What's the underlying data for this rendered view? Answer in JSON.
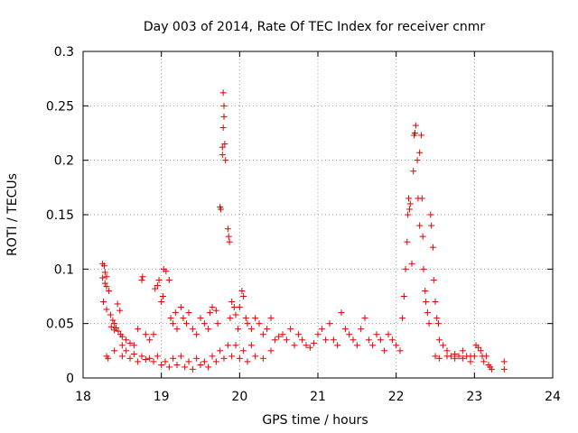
{
  "chart_data": {
    "type": "scatter",
    "title": "Day 003 of 2014, Rate Of TEC Index for receiver cnmr",
    "xlabel": "GPS time / hours",
    "ylabel": "ROTI / TECUs",
    "xlim": [
      18,
      24
    ],
    "ylim": [
      0,
      0.3
    ],
    "x_ticks": [
      18,
      19,
      20,
      21,
      22,
      23,
      24
    ],
    "y_ticks": [
      0,
      0.05,
      0.1,
      0.15,
      0.2,
      0.25,
      0.3
    ],
    "x_tick_labels": [
      "18",
      "19",
      "20",
      "21",
      "22",
      "23",
      "24"
    ],
    "y_tick_labels": [
      "0",
      "0.05",
      "0.1",
      "0.15",
      "0.2",
      "0.25",
      "0.3"
    ],
    "grid": true,
    "marker": "plus",
    "color": "#e00000",
    "series": [
      {
        "name": "ROTI",
        "points": [
          [
            18.25,
            0.105
          ],
          [
            18.27,
            0.103
          ],
          [
            18.28,
            0.097
          ],
          [
            18.3,
            0.093
          ],
          [
            18.25,
            0.092
          ],
          [
            18.28,
            0.087
          ],
          [
            18.3,
            0.084
          ],
          [
            18.33,
            0.08
          ],
          [
            18.26,
            0.07
          ],
          [
            18.3,
            0.063
          ],
          [
            18.35,
            0.058
          ],
          [
            18.38,
            0.053
          ],
          [
            18.4,
            0.05
          ],
          [
            18.42,
            0.046
          ],
          [
            18.45,
            0.043
          ],
          [
            18.48,
            0.04
          ],
          [
            18.5,
            0.038
          ],
          [
            18.55,
            0.035
          ],
          [
            18.6,
            0.032
          ],
          [
            18.65,
            0.03
          ],
          [
            18.36,
            0.047
          ],
          [
            18.4,
            0.044
          ],
          [
            18.44,
            0.068
          ],
          [
            18.47,
            0.062
          ],
          [
            18.5,
            0.03
          ],
          [
            18.7,
            0.045
          ],
          [
            18.75,
            0.09
          ],
          [
            18.76,
            0.093
          ],
          [
            18.8,
            0.04
          ],
          [
            18.85,
            0.035
          ],
          [
            18.9,
            0.04
          ],
          [
            18.92,
            0.082
          ],
          [
            18.95,
            0.085
          ],
          [
            18.97,
            0.09
          ],
          [
            19.0,
            0.07
          ],
          [
            19.02,
            0.075
          ],
          [
            19.03,
            0.1
          ],
          [
            19.06,
            0.098
          ],
          [
            19.1,
            0.09
          ],
          [
            19.12,
            0.055
          ],
          [
            19.15,
            0.05
          ],
          [
            19.18,
            0.06
          ],
          [
            19.2,
            0.045
          ],
          [
            19.25,
            0.065
          ],
          [
            19.28,
            0.055
          ],
          [
            19.32,
            0.05
          ],
          [
            19.35,
            0.06
          ],
          [
            19.4,
            0.045
          ],
          [
            19.45,
            0.04
          ],
          [
            19.5,
            0.055
          ],
          [
            19.55,
            0.05
          ],
          [
            19.6,
            0.045
          ],
          [
            19.62,
            0.06
          ],
          [
            19.65,
            0.065
          ],
          [
            19.7,
            0.062
          ],
          [
            19.72,
            0.05
          ],
          [
            19.75,
            0.157
          ],
          [
            19.76,
            0.155
          ],
          [
            19.78,
            0.205
          ],
          [
            19.78,
            0.212
          ],
          [
            19.79,
            0.23
          ],
          [
            19.8,
            0.24
          ],
          [
            19.81,
            0.215
          ],
          [
            19.82,
            0.2
          ],
          [
            19.79,
            0.262
          ],
          [
            19.8,
            0.25
          ],
          [
            19.85,
            0.137
          ],
          [
            19.86,
            0.13
          ],
          [
            19.87,
            0.125
          ],
          [
            19.88,
            0.055
          ],
          [
            19.9,
            0.07
          ],
          [
            19.93,
            0.065
          ],
          [
            19.95,
            0.058
          ],
          [
            19.98,
            0.045
          ],
          [
            20.0,
            0.065
          ],
          [
            20.03,
            0.08
          ],
          [
            20.05,
            0.075
          ],
          [
            20.08,
            0.055
          ],
          [
            20.1,
            0.05
          ],
          [
            20.15,
            0.045
          ],
          [
            20.2,
            0.055
          ],
          [
            20.25,
            0.05
          ],
          [
            20.3,
            0.04
          ],
          [
            20.35,
            0.045
          ],
          [
            20.4,
            0.055
          ],
          [
            20.45,
            0.035
          ],
          [
            20.5,
            0.038
          ],
          [
            20.55,
            0.04
          ],
          [
            20.6,
            0.035
          ],
          [
            20.65,
            0.045
          ],
          [
            20.7,
            0.03
          ],
          [
            20.75,
            0.04
          ],
          [
            20.8,
            0.035
          ],
          [
            20.85,
            0.03
          ],
          [
            20.9,
            0.028
          ],
          [
            20.95,
            0.032
          ],
          [
            21.0,
            0.04
          ],
          [
            21.05,
            0.045
          ],
          [
            21.1,
            0.035
          ],
          [
            21.15,
            0.05
          ],
          [
            21.2,
            0.035
          ],
          [
            21.25,
            0.03
          ],
          [
            21.3,
            0.06
          ],
          [
            21.35,
            0.045
          ],
          [
            21.4,
            0.04
          ],
          [
            21.45,
            0.035
          ],
          [
            21.5,
            0.03
          ],
          [
            21.55,
            0.045
          ],
          [
            21.6,
            0.055
          ],
          [
            21.65,
            0.035
          ],
          [
            21.7,
            0.03
          ],
          [
            21.75,
            0.04
          ],
          [
            21.8,
            0.035
          ],
          [
            21.85,
            0.025
          ],
          [
            21.9,
            0.04
          ],
          [
            21.95,
            0.035
          ],
          [
            22.0,
            0.03
          ],
          [
            22.05,
            0.025
          ],
          [
            22.08,
            0.055
          ],
          [
            22.1,
            0.075
          ],
          [
            22.12,
            0.1
          ],
          [
            22.14,
            0.125
          ],
          [
            22.15,
            0.15
          ],
          [
            22.16,
            0.165
          ],
          [
            22.17,
            0.155
          ],
          [
            22.18,
            0.16
          ],
          [
            22.2,
            0.105
          ],
          [
            22.22,
            0.19
          ],
          [
            22.23,
            0.223
          ],
          [
            22.24,
            0.225
          ],
          [
            22.25,
            0.232
          ],
          [
            22.27,
            0.2
          ],
          [
            22.28,
            0.165
          ],
          [
            22.3,
            0.14
          ],
          [
            22.3,
            0.207
          ],
          [
            22.32,
            0.223
          ],
          [
            22.33,
            0.165
          ],
          [
            22.34,
            0.13
          ],
          [
            22.35,
            0.1
          ],
          [
            22.37,
            0.08
          ],
          [
            22.38,
            0.07
          ],
          [
            22.4,
            0.06
          ],
          [
            22.42,
            0.05
          ],
          [
            22.44,
            0.15
          ],
          [
            22.45,
            0.14
          ],
          [
            22.47,
            0.12
          ],
          [
            22.48,
            0.09
          ],
          [
            22.5,
            0.07
          ],
          [
            22.52,
            0.055
          ],
          [
            22.54,
            0.05
          ],
          [
            22.55,
            0.035
          ],
          [
            22.6,
            0.03
          ],
          [
            22.65,
            0.025
          ],
          [
            22.7,
            0.02
          ],
          [
            22.75,
            0.018
          ],
          [
            22.8,
            0.02
          ],
          [
            22.85,
            0.025
          ],
          [
            22.9,
            0.02
          ],
          [
            22.95,
            0.015
          ],
          [
            23.0,
            0.02
          ],
          [
            23.02,
            0.03
          ],
          [
            23.05,
            0.028
          ],
          [
            23.08,
            0.025
          ],
          [
            23.1,
            0.02
          ],
          [
            23.12,
            0.015
          ],
          [
            23.15,
            0.02
          ],
          [
            23.18,
            0.012
          ],
          [
            23.2,
            0.01
          ],
          [
            23.22,
            0.008
          ],
          [
            23.38,
            0.015
          ],
          [
            23.38,
            0.008
          ],
          [
            18.3,
            0.02
          ],
          [
            18.32,
            0.018
          ],
          [
            18.4,
            0.025
          ],
          [
            18.5,
            0.02
          ],
          [
            18.6,
            0.018
          ],
          [
            18.7,
            0.015
          ],
          [
            18.8,
            0.017
          ],
          [
            18.9,
            0.015
          ],
          [
            19.0,
            0.012
          ],
          [
            19.1,
            0.01
          ],
          [
            19.2,
            0.012
          ],
          [
            19.3,
            0.01
          ],
          [
            19.4,
            0.008
          ],
          [
            19.5,
            0.012
          ],
          [
            19.6,
            0.01
          ],
          [
            19.7,
            0.015
          ],
          [
            19.8,
            0.018
          ],
          [
            19.9,
            0.02
          ],
          [
            20.0,
            0.018
          ],
          [
            20.1,
            0.015
          ],
          [
            20.2,
            0.02
          ],
          [
            20.3,
            0.018
          ],
          [
            20.4,
            0.025
          ],
          [
            18.55,
            0.025
          ],
          [
            18.65,
            0.022
          ],
          [
            18.75,
            0.02
          ],
          [
            18.85,
            0.018
          ],
          [
            18.95,
            0.02
          ],
          [
            19.05,
            0.015
          ],
          [
            19.15,
            0.018
          ],
          [
            19.25,
            0.02
          ],
          [
            19.35,
            0.015
          ],
          [
            19.45,
            0.018
          ],
          [
            19.55,
            0.015
          ],
          [
            19.65,
            0.02
          ],
          [
            19.75,
            0.025
          ],
          [
            19.85,
            0.03
          ],
          [
            19.95,
            0.03
          ],
          [
            20.05,
            0.025
          ],
          [
            20.15,
            0.03
          ],
          [
            22.5,
            0.02
          ],
          [
            22.55,
            0.018
          ],
          [
            22.65,
            0.02
          ],
          [
            22.75,
            0.022
          ],
          [
            22.85,
            0.018
          ],
          [
            22.95,
            0.02
          ]
        ]
      }
    ]
  }
}
